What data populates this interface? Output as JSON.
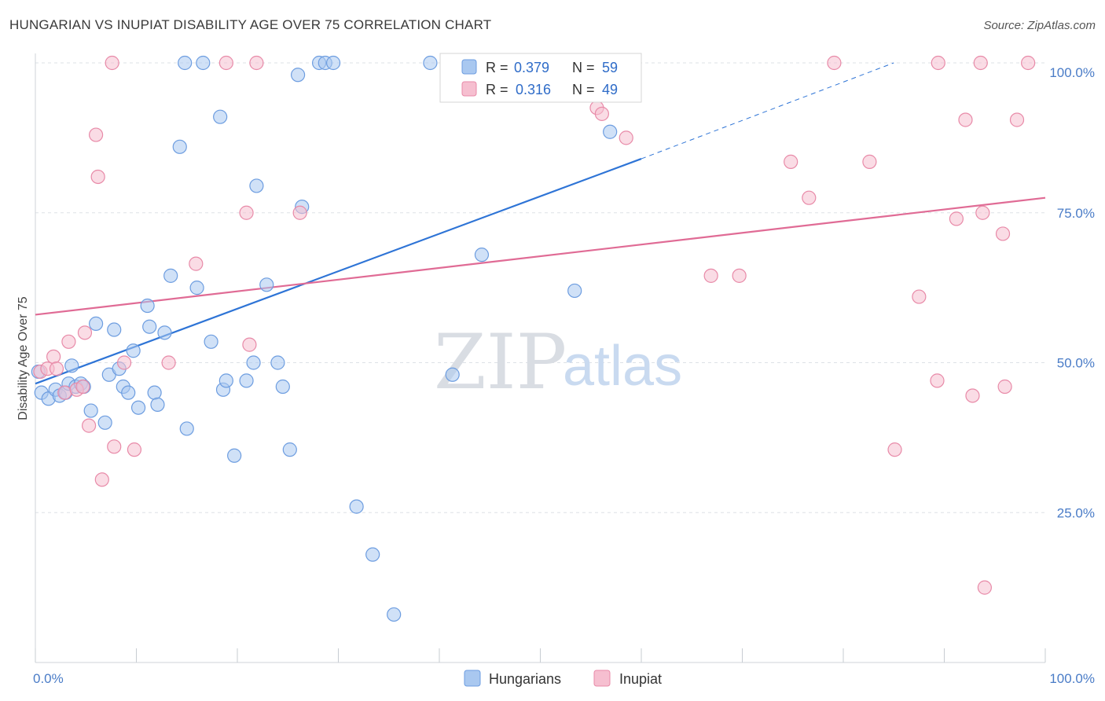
{
  "header": {
    "title": "HUNGARIAN VS INUPIAT DISABILITY AGE OVER 75 CORRELATION CHART",
    "source": "Source: ZipAtlas.com"
  },
  "watermark": {
    "zip": "ZIP",
    "atlas": "atlas"
  },
  "colors": {
    "blue_fill": "#a9c8f0",
    "blue_stroke": "#6d9de0",
    "blue_line": "#2e74d6",
    "pink_fill": "#f6bfd0",
    "pink_stroke": "#e88aa8",
    "pink_line": "#e06b95",
    "grid": "#dde1e6",
    "tick_text": "#4a7cc7"
  },
  "chart_data": {
    "type": "scatter",
    "title": "HUNGARIAN VS INUPIAT DISABILITY AGE OVER 75 CORRELATION CHART",
    "xlabel": "",
    "ylabel": "Disability Age Over 75",
    "xlim": [
      0,
      100
    ],
    "ylim": [
      0,
      100
    ],
    "x_tick_labels": [
      "0.0%",
      "100.0%"
    ],
    "y_ticks": [
      {
        "value": 25,
        "label": "25.0%"
      },
      {
        "value": 50,
        "label": "50.0%"
      },
      {
        "value": 75,
        "label": "75.0%"
      },
      {
        "value": 100,
        "label": "100.0%"
      }
    ],
    "grid": true,
    "legend_position": "top-center",
    "legend": [
      {
        "r_label": "R = ",
        "r_value": "0.379",
        "n_label": "N = ",
        "n_value": "59"
      },
      {
        "r_label": "R = ",
        "r_value": "0.316",
        "n_label": "N = ",
        "n_value": "49"
      }
    ],
    "series": [
      {
        "name": "Hungarians",
        "color": "blue",
        "trend": {
          "x0": 0,
          "y0": 46.5,
          "x1": 60,
          "y1": 84,
          "dashed_to_x": 85,
          "dashed_to_y": 100
        },
        "points": [
          [
            0.3,
            48.5
          ],
          [
            0.6,
            45
          ],
          [
            1.3,
            44
          ],
          [
            2.0,
            45.5
          ],
          [
            2.4,
            44.5
          ],
          [
            3.0,
            45
          ],
          [
            3.3,
            46.5
          ],
          [
            3.6,
            49.5
          ],
          [
            4.0,
            46
          ],
          [
            4.5,
            46.5
          ],
          [
            4.8,
            46
          ],
          [
            5.5,
            42
          ],
          [
            6.0,
            56.5
          ],
          [
            6.9,
            40
          ],
          [
            7.3,
            48
          ],
          [
            7.8,
            55.5
          ],
          [
            8.3,
            49
          ],
          [
            8.7,
            46
          ],
          [
            9.2,
            45
          ],
          [
            9.7,
            52
          ],
          [
            10.2,
            42.5
          ],
          [
            11.1,
            59.5
          ],
          [
            11.3,
            56
          ],
          [
            11.8,
            45
          ],
          [
            12.1,
            43
          ],
          [
            12.8,
            55
          ],
          [
            13.4,
            64.5
          ],
          [
            14.3,
            86
          ],
          [
            14.8,
            100
          ],
          [
            15.0,
            39
          ],
          [
            16.0,
            62.5
          ],
          [
            16.6,
            100
          ],
          [
            17.4,
            53.5
          ],
          [
            18.3,
            91
          ],
          [
            18.6,
            45.5
          ],
          [
            18.9,
            47
          ],
          [
            19.7,
            34.5
          ],
          [
            20.9,
            47
          ],
          [
            21.6,
            50
          ],
          [
            21.9,
            79.5
          ],
          [
            22.9,
            63
          ],
          [
            24.0,
            50
          ],
          [
            24.5,
            46
          ],
          [
            25.2,
            35.5
          ],
          [
            26.0,
            98
          ],
          [
            26.4,
            76
          ],
          [
            28.1,
            100
          ],
          [
            28.7,
            100
          ],
          [
            29.5,
            100
          ],
          [
            31.8,
            26
          ],
          [
            33.4,
            18
          ],
          [
            35.5,
            8
          ],
          [
            39.1,
            100
          ],
          [
            41.1,
            100
          ],
          [
            41.3,
            48
          ],
          [
            44.2,
            68
          ],
          [
            50.0,
            100
          ],
          [
            53.4,
            62
          ],
          [
            56.9,
            88.5
          ]
        ]
      },
      {
        "name": "Inupiat",
        "color": "pink",
        "trend": {
          "x0": 0,
          "y0": 58,
          "x1": 100,
          "y1": 77.5
        },
        "points": [
          [
            0.5,
            48.5
          ],
          [
            1.2,
            49
          ],
          [
            1.8,
            51
          ],
          [
            2.1,
            49
          ],
          [
            2.9,
            45
          ],
          [
            3.3,
            53.5
          ],
          [
            4.1,
            45.5
          ],
          [
            4.7,
            46
          ],
          [
            4.9,
            55
          ],
          [
            5.3,
            39.5
          ],
          [
            6.0,
            88
          ],
          [
            6.2,
            81
          ],
          [
            6.6,
            30.5
          ],
          [
            7.6,
            100
          ],
          [
            7.8,
            36
          ],
          [
            8.8,
            50
          ],
          [
            9.8,
            35.5
          ],
          [
            13.2,
            50
          ],
          [
            15.9,
            66.5
          ],
          [
            18.9,
            100
          ],
          [
            20.9,
            75
          ],
          [
            21.2,
            53
          ],
          [
            21.9,
            100
          ],
          [
            26.2,
            75
          ],
          [
            45.0,
            100
          ],
          [
            53.1,
            95.5
          ],
          [
            55.6,
            92.5
          ],
          [
            56.1,
            91.5
          ],
          [
            58.5,
            87.5
          ],
          [
            66.9,
            64.5
          ],
          [
            69.7,
            64.5
          ],
          [
            74.8,
            83.5
          ],
          [
            76.6,
            77.5
          ],
          [
            79.1,
            100
          ],
          [
            82.6,
            83.5
          ],
          [
            85.1,
            35.5
          ],
          [
            87.5,
            61
          ],
          [
            89.3,
            47
          ],
          [
            89.4,
            100
          ],
          [
            91.2,
            74
          ],
          [
            92.1,
            90.5
          ],
          [
            92.8,
            44.5
          ],
          [
            93.6,
            100
          ],
          [
            93.8,
            75
          ],
          [
            94.0,
            12.5
          ],
          [
            95.8,
            71.5
          ],
          [
            96.0,
            46
          ],
          [
            97.2,
            90.5
          ],
          [
            98.3,
            100
          ]
        ]
      }
    ]
  }
}
